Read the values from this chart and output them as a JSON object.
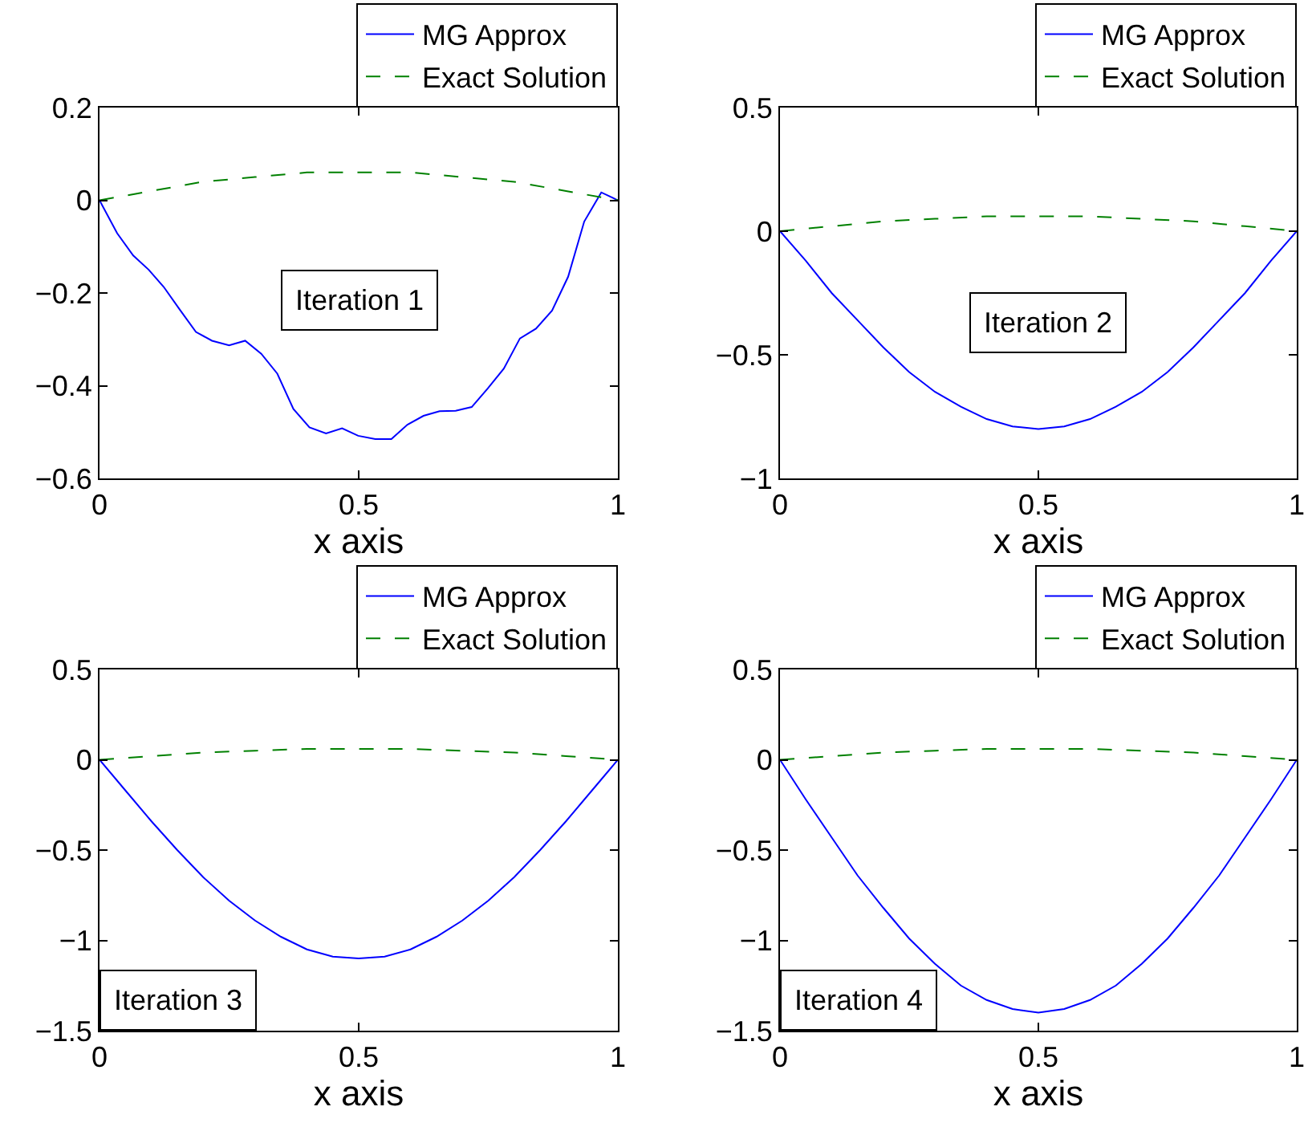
{
  "chart_data": [
    {
      "type": "line",
      "xlabel": "x axis",
      "xlim": [
        0,
        1
      ],
      "xticks": [
        0,
        0.5,
        1
      ],
      "ylim": [
        -0.6,
        0.2
      ],
      "yticks": [
        {
          "value": -0.6,
          "label": "−0.6"
        },
        {
          "value": -0.4,
          "label": "−0.4"
        },
        {
          "value": -0.2,
          "label": "−0.2"
        },
        0,
        0.2
      ],
      "legend": "top right",
      "grid": false,
      "marker": "none",
      "annotations": [
        "Iteration 1"
      ],
      "series": [
        {
          "name": "MG Approx",
          "color": "#0000ff",
          "line_style": "solid",
          "x": [
            0,
            0.034,
            0.065,
            0.095,
            0.124,
            0.155,
            0.186,
            0.217,
            0.25,
            0.281,
            0.312,
            0.343,
            0.374,
            0.405,
            0.437,
            0.468,
            0.499,
            0.532,
            0.563,
            0.594,
            0.625,
            0.656,
            0.687,
            0.718,
            0.749,
            0.78,
            0.811,
            0.842,
            0.873,
            0.904,
            0.935,
            0.968,
            1
          ],
          "values": [
            0,
            -0.071,
            -0.119,
            -0.15,
            -0.187,
            -0.236,
            -0.284,
            -0.303,
            -0.313,
            -0.303,
            -0.331,
            -0.374,
            -0.45,
            -0.49,
            -0.503,
            -0.492,
            -0.508,
            -0.515,
            -0.515,
            -0.484,
            -0.465,
            -0.455,
            -0.454,
            -0.446,
            -0.406,
            -0.363,
            -0.298,
            -0.277,
            -0.238,
            -0.165,
            -0.046,
            0.017,
            0
          ]
        },
        {
          "name": "Exact Solution",
          "color": "#008000",
          "line_style": "dashed",
          "x": [
            0,
            0.1,
            0.2,
            0.3,
            0.4,
            0.5,
            0.6,
            0.7,
            0.8,
            0.9,
            1
          ],
          "values": [
            0,
            0.02,
            0.04,
            0.05,
            0.06,
            0.06,
            0.06,
            0.05,
            0.04,
            0.02,
            0
          ]
        }
      ]
    },
    {
      "type": "line",
      "xlabel": "x axis",
      "xlim": [
        0,
        1
      ],
      "xticks": [
        0,
        0.5,
        1
      ],
      "ylim": [
        -1,
        0.5
      ],
      "yticks": [
        {
          "value": -1,
          "label": "−1"
        },
        {
          "value": -0.5,
          "label": "−0.5"
        },
        0,
        0.5
      ],
      "legend": "top right",
      "grid": false,
      "marker": "none",
      "annotations": [
        "Iteration 2"
      ],
      "series": [
        {
          "name": "MG Approx",
          "color": "#0000ff",
          "line_style": "solid",
          "x": [
            0,
            0.05,
            0.1,
            0.15,
            0.2,
            0.25,
            0.3,
            0.35,
            0.4,
            0.45,
            0.5,
            0.55,
            0.6,
            0.65,
            0.7,
            0.75,
            0.8,
            0.85,
            0.9,
            0.95,
            1
          ],
          "values": [
            0,
            -0.12,
            -0.25,
            -0.36,
            -0.47,
            -0.57,
            -0.65,
            -0.71,
            -0.76,
            -0.79,
            -0.8,
            -0.79,
            -0.76,
            -0.71,
            -0.65,
            -0.57,
            -0.47,
            -0.36,
            -0.25,
            -0.12,
            0
          ]
        },
        {
          "name": "Exact Solution",
          "color": "#008000",
          "line_style": "dashed",
          "x": [
            0,
            0.1,
            0.2,
            0.3,
            0.4,
            0.5,
            0.6,
            0.7,
            0.8,
            0.9,
            1
          ],
          "values": [
            0,
            0.02,
            0.04,
            0.05,
            0.06,
            0.06,
            0.06,
            0.05,
            0.04,
            0.02,
            0
          ]
        }
      ]
    },
    {
      "type": "line",
      "xlabel": "x axis",
      "xlim": [
        0,
        1
      ],
      "xticks": [
        0,
        0.5,
        1
      ],
      "ylim": [
        -1.5,
        0.5
      ],
      "yticks": [
        {
          "value": -1.5,
          "label": "−1.5"
        },
        {
          "value": -1,
          "label": "−1"
        },
        {
          "value": -0.5,
          "label": "−0.5"
        },
        0,
        0.5
      ],
      "legend": "top right",
      "grid": false,
      "marker": "none",
      "annotations": [
        "Iteration 3"
      ],
      "series": [
        {
          "name": "MG Approx",
          "color": "#0000ff",
          "line_style": "solid",
          "x": [
            0,
            0.05,
            0.1,
            0.15,
            0.2,
            0.25,
            0.3,
            0.35,
            0.4,
            0.45,
            0.5,
            0.55,
            0.6,
            0.65,
            0.7,
            0.75,
            0.8,
            0.85,
            0.9,
            0.95,
            1
          ],
          "values": [
            0,
            -0.17,
            -0.34,
            -0.5,
            -0.65,
            -0.78,
            -0.89,
            -0.98,
            -1.05,
            -1.09,
            -1.1,
            -1.09,
            -1.05,
            -0.98,
            -0.89,
            -0.78,
            -0.65,
            -0.5,
            -0.34,
            -0.17,
            0
          ]
        },
        {
          "name": "Exact Solution",
          "color": "#008000",
          "line_style": "dashed",
          "x": [
            0,
            0.1,
            0.2,
            0.3,
            0.4,
            0.5,
            0.6,
            0.7,
            0.8,
            0.9,
            1
          ],
          "values": [
            0,
            0.02,
            0.04,
            0.05,
            0.06,
            0.06,
            0.06,
            0.05,
            0.04,
            0.02,
            0
          ]
        }
      ]
    },
    {
      "type": "line",
      "xlabel": "x axis",
      "xlim": [
        0,
        1
      ],
      "xticks": [
        0,
        0.5,
        1
      ],
      "ylim": [
        -1.5,
        0.5
      ],
      "yticks": [
        {
          "value": -1.5,
          "label": "−1.5"
        },
        {
          "value": -1,
          "label": "−1"
        },
        {
          "value": -0.5,
          "label": "−0.5"
        },
        0,
        0.5
      ],
      "legend": "top right",
      "grid": false,
      "marker": "none",
      "annotations": [
        "Iteration 4"
      ],
      "series": [
        {
          "name": "MG Approx",
          "color": "#0000ff",
          "line_style": "solid",
          "x": [
            0,
            0.05,
            0.1,
            0.15,
            0.2,
            0.25,
            0.3,
            0.35,
            0.4,
            0.45,
            0.5,
            0.55,
            0.6,
            0.65,
            0.7,
            0.75,
            0.8,
            0.85,
            0.9,
            0.95,
            1
          ],
          "values": [
            0,
            -0.22,
            -0.43,
            -0.64,
            -0.82,
            -0.99,
            -1.13,
            -1.25,
            -1.33,
            -1.38,
            -1.4,
            -1.38,
            -1.33,
            -1.25,
            -1.13,
            -0.99,
            -0.82,
            -0.64,
            -0.43,
            -0.22,
            0
          ]
        },
        {
          "name": "Exact Solution",
          "color": "#008000",
          "line_style": "dashed",
          "x": [
            0,
            0.1,
            0.2,
            0.3,
            0.4,
            0.5,
            0.6,
            0.7,
            0.8,
            0.9,
            1
          ],
          "values": [
            0,
            0.02,
            0.04,
            0.05,
            0.06,
            0.06,
            0.06,
            0.05,
            0.04,
            0.02,
            0
          ]
        }
      ]
    }
  ]
}
